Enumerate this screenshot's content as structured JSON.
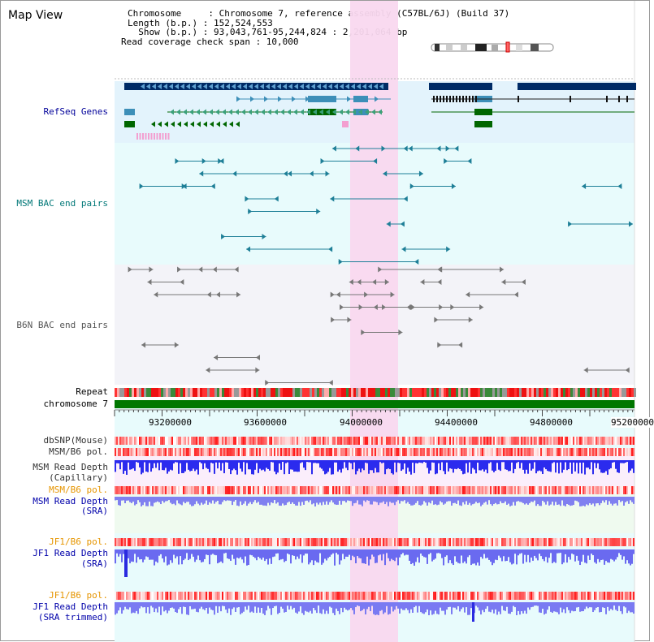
{
  "view": {
    "title": "Map View"
  },
  "info": {
    "chromosome_line": "Chromosome     : Chromosome 7, reference assembly (C57BL/6J) (Build 37)",
    "length_line": "Length (b.p.) : 152,524,553",
    "show_line": "  Show (b.p.) : 93,043,761-95,244,824 : 2,201,064 bp",
    "coverage_line": "Read coverage check span : 10,000"
  },
  "tracks": {
    "refseq": "RefSeq Genes",
    "msm_bac": "MSM BAC end pairs",
    "b6n_bac": "B6N BAC end pairs",
    "repeat": "Repeat",
    "chromosome": "chromosome 7",
    "dbsnp": "dbSNP(Mouse)",
    "msm_b6_pol": "MSM/B6 pol.",
    "msm_depth_cap_1": "MSM Read Depth",
    "msm_depth_cap_2": "(Capillary)",
    "msm_b6_pol_2": "MSM/B6 pol.",
    "msm_depth_sra_1": "MSM Read Depth",
    "msm_depth_sra_2": "(SRA)",
    "jf1_b6_pol": "JF1/B6 pol.",
    "jf1_depth_sra_1": "JF1 Read Depth",
    "jf1_depth_sra_2": "(SRA)",
    "jf1_b6_pol_2": "JF1/B6 pol.",
    "jf1_depth_trim_1": "JF1 Read Depth",
    "jf1_depth_trim_2": "(SRA trimmed)"
  },
  "axis": {
    "ticks": [
      "93200000",
      "93600000",
      "94000000",
      "94400000",
      "94800000",
      "95200000"
    ]
  },
  "colors": {
    "refseq_label": "#000099",
    "msm_label": "#007777",
    "b6n_label": "#555555",
    "orange_label": "#e69500",
    "blue_label": "#0000aa",
    "gene_navy": "#002b66",
    "gene_teal": "#3d8fb8",
    "gene_green": "#006600",
    "highlight": "#f9d8ef",
    "chromosome_bar": "#007700",
    "depth_blue": "#3333ee"
  }
}
